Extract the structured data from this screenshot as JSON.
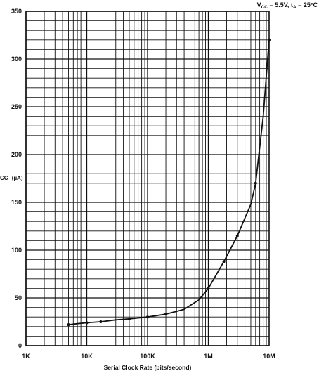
{
  "chart_data": {
    "type": "line",
    "annotation": "V_CC = 5.5V, t_A = 25°C",
    "annotation_parts": {
      "v": "V",
      "v_sub": "CC",
      "v_rest": " = 5.5V, t",
      "t_sub": "A",
      "t_rest": " = 25°C"
    },
    "xlabel": "Serial Clock Rate (bits/second)",
    "ylabel": "I_CC (µA)",
    "ylabel_parts": {
      "i_sub": "CC",
      "rest": " (µA)"
    },
    "x_scale": "log",
    "xlim": [
      1000,
      10000000
    ],
    "ylim": [
      0,
      350
    ],
    "grid": true,
    "x_tick_labels": [
      {
        "value": 1000,
        "label": "1K"
      },
      {
        "value": 10000,
        "label": "10K"
      },
      {
        "value": 100000,
        "label": "100K"
      },
      {
        "value": 1000000,
        "label": "1M"
      },
      {
        "value": 10000000,
        "label": "10M"
      }
    ],
    "y_tick_labels": [
      {
        "value": 0,
        "label": "0"
      },
      {
        "value": 50,
        "label": "50"
      },
      {
        "value": 100,
        "label": "100"
      },
      {
        "value": 150,
        "label": "150"
      },
      {
        "value": 200,
        "label": "200"
      },
      {
        "value": 250,
        "label": "250"
      },
      {
        "value": 300,
        "label": "300"
      },
      {
        "value": 350,
        "label": "350"
      }
    ],
    "series": [
      {
        "x": [
          5000,
          7000,
          10000,
          17000,
          30000,
          50000,
          100000,
          200000,
          400000,
          700000,
          1000000,
          1800000,
          3000000,
          5000000,
          6000000,
          8000000,
          10000000
        ],
        "y": [
          22,
          23,
          24,
          25,
          27,
          28,
          30,
          33,
          38,
          48,
          60,
          88,
          115,
          148,
          170,
          240,
          320
        ]
      }
    ],
    "markers": {
      "x": [
        5000,
        10000,
        17000,
        50000,
        100000,
        200000,
        1000000,
        1800000,
        3000000,
        6000000,
        10000000
      ],
      "y": [
        22,
        24,
        25,
        28,
        30,
        33,
        60,
        88,
        115,
        170,
        320
      ]
    }
  }
}
